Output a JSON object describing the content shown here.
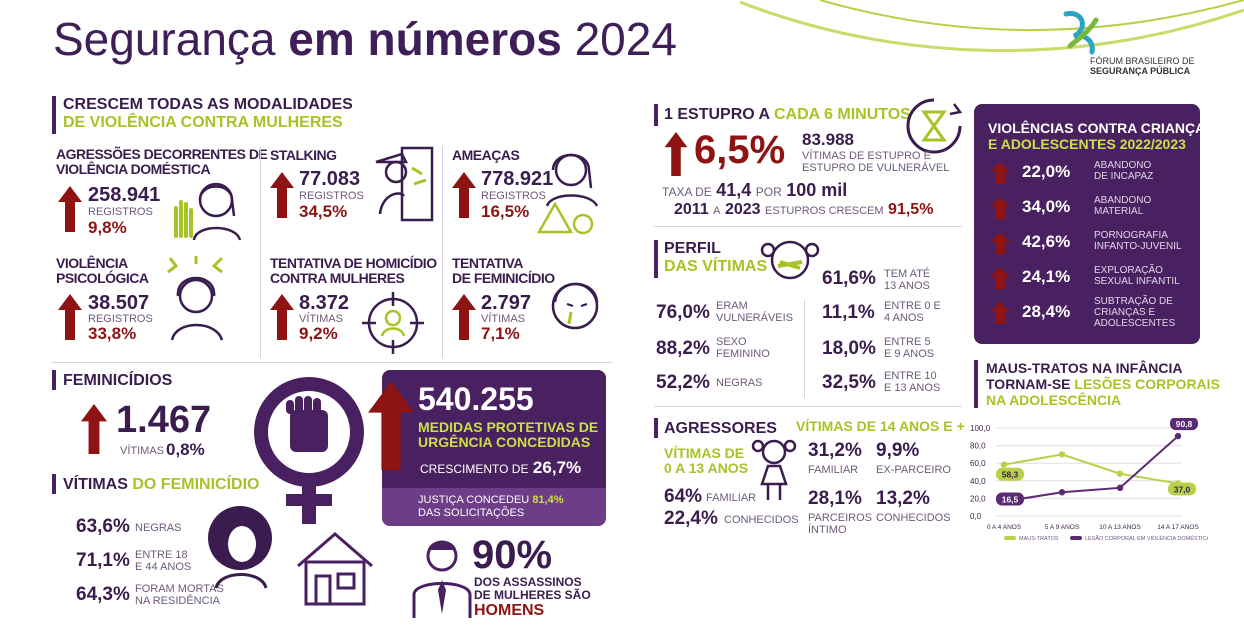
{
  "title": {
    "part1": "Segurança",
    "part2": "em números",
    "year": "2024"
  },
  "logo": {
    "line1": "FÓRUM BRASILEIRO DE",
    "line2": "SEGURANÇA PÚBLICA"
  },
  "violencia": {
    "title1": "CRESCEM TODAS AS MODALIDADES",
    "title2": "DE VIOLÊNCIA CONTRA MULHERES",
    "items": [
      {
        "label1": "AGRESSÕES DECORRENTES DE",
        "label2": "VIOLÊNCIA DOMÉSTICA",
        "value": "258.941",
        "unit": "REGISTROS",
        "pct": "9,8%"
      },
      {
        "label1": "STALKING",
        "label2": "",
        "value": "77.083",
        "unit": "REGISTROS",
        "pct": "34,5%"
      },
      {
        "label1": "AMEAÇAS",
        "label2": "",
        "value": "778.921",
        "unit": "REGISTROS",
        "pct": "16,5%"
      },
      {
        "label1": "VIOLÊNCIA",
        "label2": "PSICOLÓGICA",
        "value": "38.507",
        "unit": "REGISTROS",
        "pct": "33,8%"
      },
      {
        "label1": "TENTATIVA DE HOMICÍDIO",
        "label2": "CONTRA MULHERES",
        "value": "8.372",
        "unit": "VÍTIMAS",
        "pct": "9,2%"
      },
      {
        "label1": "TENTATIVA",
        "label2": "DE FEMINICÍDIO",
        "value": "2.797",
        "unit": "VÍTIMAS",
        "pct": "7,1%"
      }
    ]
  },
  "feminicidios": {
    "title": "FEMINICÍDIOS",
    "value": "1.467",
    "unit": "VÍTIMAS",
    "pct": "0,8%"
  },
  "vitimas_fem": {
    "title1": "VÍTIMAS",
    "title2": "DO FEMINICÍDIO",
    "rows": [
      {
        "pct": "63,6%",
        "l1": "NEGRAS",
        "l2": ""
      },
      {
        "pct": "71,1%",
        "l1": "ENTRE 18",
        "l2": "E 44 ANOS"
      },
      {
        "pct": "64,3%",
        "l1": "FORAM MORTAS",
        "l2": "NA RESIDÊNCIA"
      }
    ]
  },
  "medidas": {
    "value": "540.255",
    "l1": "MEDIDAS PROTETIVAS DE",
    "l2": "URGÊNCIA CONCEDIDAS",
    "growth_label": "CRESCIMENTO DE",
    "growth": "26,7%",
    "j1": "JUSTIÇA CONCEDEU",
    "jpct": "81,4%",
    "j2": "DAS SOLICITAÇÕES"
  },
  "assassinos": {
    "pct": "90%",
    "l1": "DOS ASSASSINOS",
    "l2": "DE MULHERES SÃO",
    "l3": "HOMENS"
  },
  "estupro": {
    "t1": "1 ESTUPRO A",
    "t2": "CADA 6 MINUTOS",
    "pct": "6,5%",
    "value": "83.988",
    "l1": "VÍTIMAS DE ESTUPRO E",
    "l2": "ESTUPRO DE VULNERÁVEL",
    "taxa_a": "TAXA DE",
    "taxa_v": "41,4",
    "taxa_b": "POR",
    "taxa_c": "100 mil",
    "yr1": "2011",
    "yr_a": "A",
    "yr2": "2023",
    "yr_b": "ESTUPROS CRESCEM",
    "yr_pct": "91,5%"
  },
  "perfil": {
    "t1": "PERFIL",
    "t2": "DAS VÍTIMAS",
    "top": {
      "pct": "61,6%",
      "l1": "TEM ATÉ",
      "l2": "13 ANOS"
    },
    "left": [
      {
        "pct": "76,0%",
        "l1": "ERAM",
        "l2": "VULNERÁVEIS"
      },
      {
        "pct": "88,2%",
        "l1": "SEXO",
        "l2": "FEMININO"
      },
      {
        "pct": "52,2%",
        "l1": "NEGRAS",
        "l2": ""
      }
    ],
    "right": [
      {
        "pct": "11,1%",
        "l1": "ENTRE 0 E",
        "l2": "4 ANOS"
      },
      {
        "pct": "18,0%",
        "l1": "ENTRE 5",
        "l2": "E 9 ANOS"
      },
      {
        "pct": "32,5%",
        "l1": "ENTRE 10",
        "l2": "E 13 ANOS"
      }
    ]
  },
  "agressores": {
    "title": "AGRESSORES",
    "v14": "VÍTIMAS DE 14 ANOS E +",
    "v013a": "VÍTIMAS DE",
    "v013b": "0 A 13 ANOS",
    "a1": {
      "pct": "64%",
      "l": "FAMILIAR"
    },
    "a2": {
      "pct": "22,4%",
      "l": "CONHECIDOS"
    },
    "b1": {
      "pct": "31,2%",
      "l": "FAMILIAR"
    },
    "b2": {
      "pct": "9,9%",
      "l": "EX-PARCEIRO"
    },
    "b3": {
      "pct": "28,1%",
      "l1": "PARCEIROS",
      "l2": "ÍNTIMO"
    },
    "b4": {
      "pct": "13,2%",
      "l": "CONHECIDOS"
    }
  },
  "criancas": {
    "t1": "VIOLÊNCIAS CONTRA CRIANÇAS",
    "t2": "E ADOLESCENTES 2022/2023",
    "rows": [
      {
        "pct": "22,0%",
        "l1": "ABANDONO",
        "l2": "DE INCAPAZ",
        "l3": ""
      },
      {
        "pct": "34,0%",
        "l1": "ABANDONO",
        "l2": "MATERIAL",
        "l3": ""
      },
      {
        "pct": "42,6%",
        "l1": "PORNOGRAFIA",
        "l2": "INFANTO-JUVENIL",
        "l3": ""
      },
      {
        "pct": "24,1%",
        "l1": "EXPLORAÇÃO",
        "l2": "SEXUAL INFANTIL",
        "l3": ""
      },
      {
        "pct": "28,4%",
        "l1": "SUBTRAÇÃO DE",
        "l2": "CRIANÇAS E",
        "l3": "ADOLESCENTES"
      }
    ]
  },
  "maus_tratos": {
    "t1": "MAUS-TRATOS NA INFÂNCIA",
    "t2a": "TORNAM-SE",
    "t2b": "LESÕES CORPORAIS",
    "t3": "NA ADOLESCÊNCIA"
  },
  "chart_data": {
    "type": "line",
    "categories": [
      "0 A 4 ANOS",
      "5 A 9 ANOS",
      "10 A 13 ANOS",
      "14 A 17 ANOS"
    ],
    "ylim": [
      0,
      100
    ],
    "yticks": [
      "100,0",
      "80,0",
      "60,0",
      "40,0",
      "20,0",
      "0,0"
    ],
    "series": [
      {
        "name": "MAUS-TRATOS",
        "color": "#b9d148",
        "values": [
          58.3,
          70,
          48,
          37.0
        ]
      },
      {
        "name": "LESÃO CORPORAL EM VIOLÊNCIA DOMÉSTICA",
        "color": "#5b2a74",
        "values": [
          16.5,
          27,
          32,
          90.8
        ]
      }
    ],
    "labels": {
      "mt_start": "58,3",
      "mt_end": "37,0",
      "lc_start": "16,5",
      "lc_end": "90,8"
    }
  }
}
